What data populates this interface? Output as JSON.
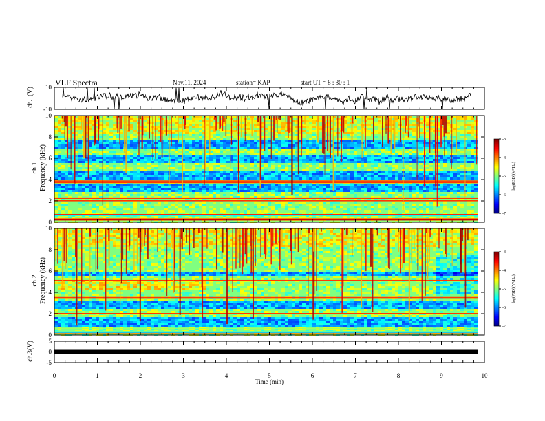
{
  "header": {
    "title": "VLF Spectra",
    "date": "Nov.11, 2024",
    "station": "station= KAP",
    "start_ut": "start  UT  =   8  : 30 : 1"
  },
  "chart_data": [
    {
      "type": "line",
      "panel": "ch1-waveform",
      "ylabel": "ch.1(V)",
      "ylim": [
        -10,
        10
      ],
      "yticks": [
        "10",
        "-10"
      ],
      "x_range_min": [
        0,
        9.85
      ],
      "description_level_v": 0
    },
    {
      "type": "heatmap",
      "panel": "ch1-spectrogram",
      "ylabel": "ch.1\nFrequency (kHz)",
      "ylabel_line1": "ch.1",
      "ylabel_line2": "Frequency  (kHz)",
      "ylim": [
        0,
        10
      ],
      "yticks": [
        "0",
        "2",
        "4",
        "6",
        "8",
        "10"
      ],
      "colorbar": {
        "label": "log(PSD)(V²/Hz)",
        "range": [
          -7,
          -3
        ],
        "ticks": [
          "-3",
          "-4",
          "-5",
          "-6",
          "-7"
        ]
      },
      "low_power_bands_khz": [
        [
          2.8,
          3.6
        ],
        [
          4.0,
          4.8
        ],
        [
          5.6,
          6.3
        ],
        [
          7.0,
          7.6
        ]
      ],
      "strong_lines_khz": [
        0.2,
        2.0,
        2.2,
        3.7,
        3.85
      ]
    },
    {
      "type": "heatmap",
      "panel": "ch2-spectrogram",
      "ylabel_line1": "ch.2",
      "ylabel_line2": "Frequency  (kHz)",
      "ylim": [
        0,
        10
      ],
      "yticks": [
        "0",
        "2",
        "4",
        "6",
        "8",
        "10"
      ],
      "colorbar": {
        "label": "log(PSD)(V²/Hz)",
        "range": [
          -7,
          -3
        ],
        "ticks": [
          "-3",
          "-4",
          "-5",
          "-6",
          "-7"
        ]
      },
      "low_power_bands_khz": [
        [
          2.4,
          3.2
        ],
        [
          0.8,
          1.6
        ],
        [
          5.5,
          6.0
        ]
      ],
      "strong_lines_khz": [
        0.2,
        2.0,
        3.5,
        5.1
      ]
    },
    {
      "type": "line",
      "panel": "ch3",
      "ylabel": "ch.3(V)",
      "ylim": [
        -5,
        5
      ],
      "yticks": [
        "5",
        "0",
        "-5"
      ],
      "level_v": 0
    }
  ],
  "xaxis": {
    "label": "Time  (min)",
    "ticks": [
      "0",
      "1",
      "2",
      "3",
      "4",
      "5",
      "6",
      "7",
      "8",
      "9",
      "10"
    ],
    "range": [
      0,
      10
    ],
    "data_end_min": 9.85
  },
  "colors": {
    "axis": "#000000",
    "background": "#ffffff"
  }
}
